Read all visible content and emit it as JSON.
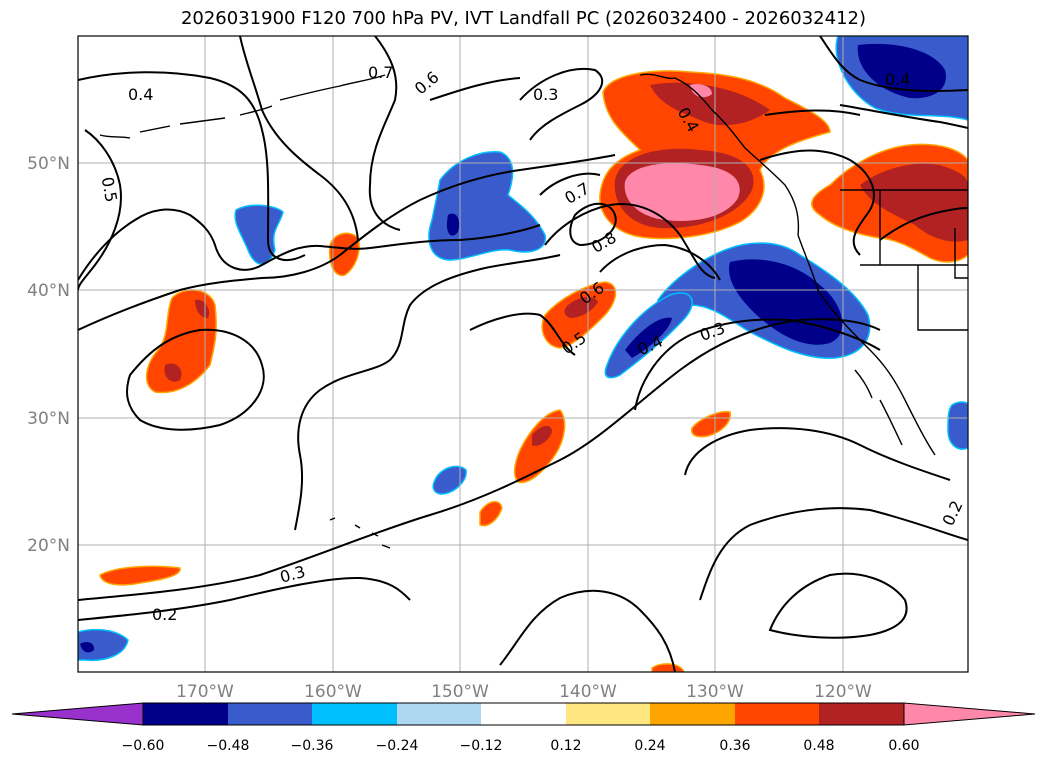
{
  "title": "2026031900 F120 700 hPa PV, IVT Landfall PC (2026032400 - 2026032412)",
  "map": {
    "lat_labels": [
      "50°N",
      "40°N",
      "30°N",
      "20°N"
    ],
    "lon_labels": [
      "170°W",
      "160°W",
      "150°W",
      "140°W",
      "130°W",
      "120°W"
    ],
    "gridlines": true
  },
  "contour_labels": [
    "0.4",
    "0.3",
    "0.5",
    "0.7",
    "0.6",
    "0.7",
    "0.8",
    "0.6",
    "0.5",
    "0.4",
    "0.3",
    "0.4",
    "0.3",
    "0.2",
    "0.2",
    "0.4"
  ],
  "colorbar": {
    "ticks": [
      "−0.60",
      "−0.48",
      "−0.36",
      "−0.24",
      "−0.12",
      "0.12",
      "0.24",
      "0.36",
      "0.48",
      "0.60"
    ],
    "colors": [
      "#9932cc",
      "#00008b",
      "#3a5bcb",
      "#00bfff",
      "#add8f0",
      "#ffffff",
      "#ffe680",
      "#ffa500",
      "#ff4500",
      "#b22222",
      "#ff88aa"
    ]
  }
}
